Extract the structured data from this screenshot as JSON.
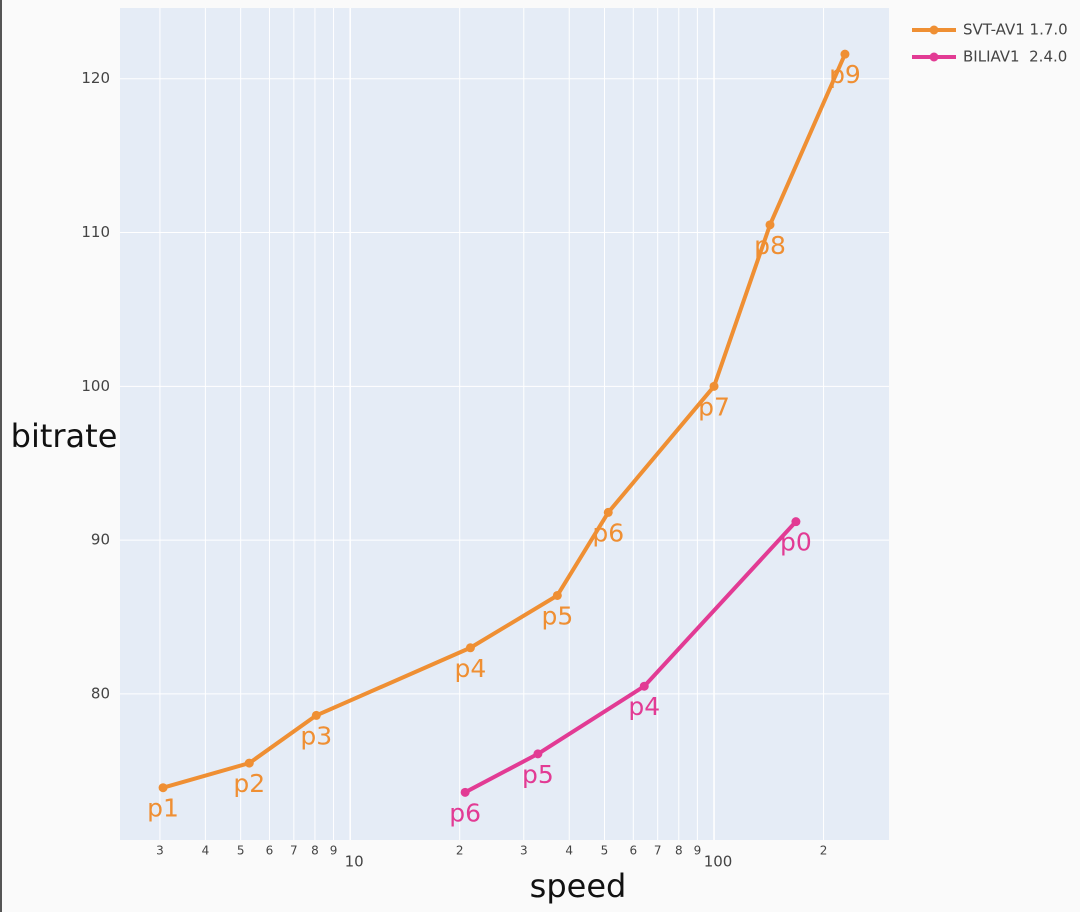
{
  "chart_data": {
    "type": "line",
    "x_label": "speed",
    "y_label": "bitrate",
    "xlog": true,
    "grid": true,
    "legend": "top-right",
    "xlim": [
      2.33,
      302.6
    ],
    "ylim": [
      70.5,
      124.6
    ],
    "xticks": [
      3,
      4,
      5,
      6,
      7,
      8,
      9,
      10,
      {
        "value": 20,
        "label": "2"
      },
      {
        "value": 30,
        "label": "3"
      },
      {
        "value": 40,
        "label": "4"
      },
      {
        "value": 50,
        "label": "5"
      },
      {
        "value": 60,
        "label": "6"
      },
      {
        "value": 70,
        "label": "7"
      },
      {
        "value": 80,
        "label": "8"
      },
      {
        "value": 90,
        "label": "9"
      },
      100,
      {
        "value": 200,
        "label": "2"
      }
    ],
    "yticks": [
      80,
      90,
      100,
      110,
      120
    ],
    "series": [
      {
        "name": "SVT-AV1 1.7.0",
        "color": "#ef8f33",
        "x": [
          3.06,
          5.28,
          8.07,
          21.4,
          37.1,
          51.2,
          100,
          142.5,
          229
        ],
        "values": [
          73.9,
          75.5,
          78.6,
          83.0,
          86.4,
          91.8,
          100.0,
          110.5,
          121.6
        ],
        "labels": [
          "p1",
          "p2",
          "p3",
          "p4",
          "p5",
          "p6",
          "p7",
          "p8",
          "p9"
        ]
      },
      {
        "name": "BILIAV1  2.4.0",
        "color": "#e23b94",
        "x": [
          20.7,
          32.8,
          64.3,
          167.9
        ],
        "values": [
          73.6,
          76.1,
          80.5,
          91.2
        ],
        "labels": [
          "p6",
          "p5",
          "p4",
          "p0"
        ]
      }
    ]
  }
}
